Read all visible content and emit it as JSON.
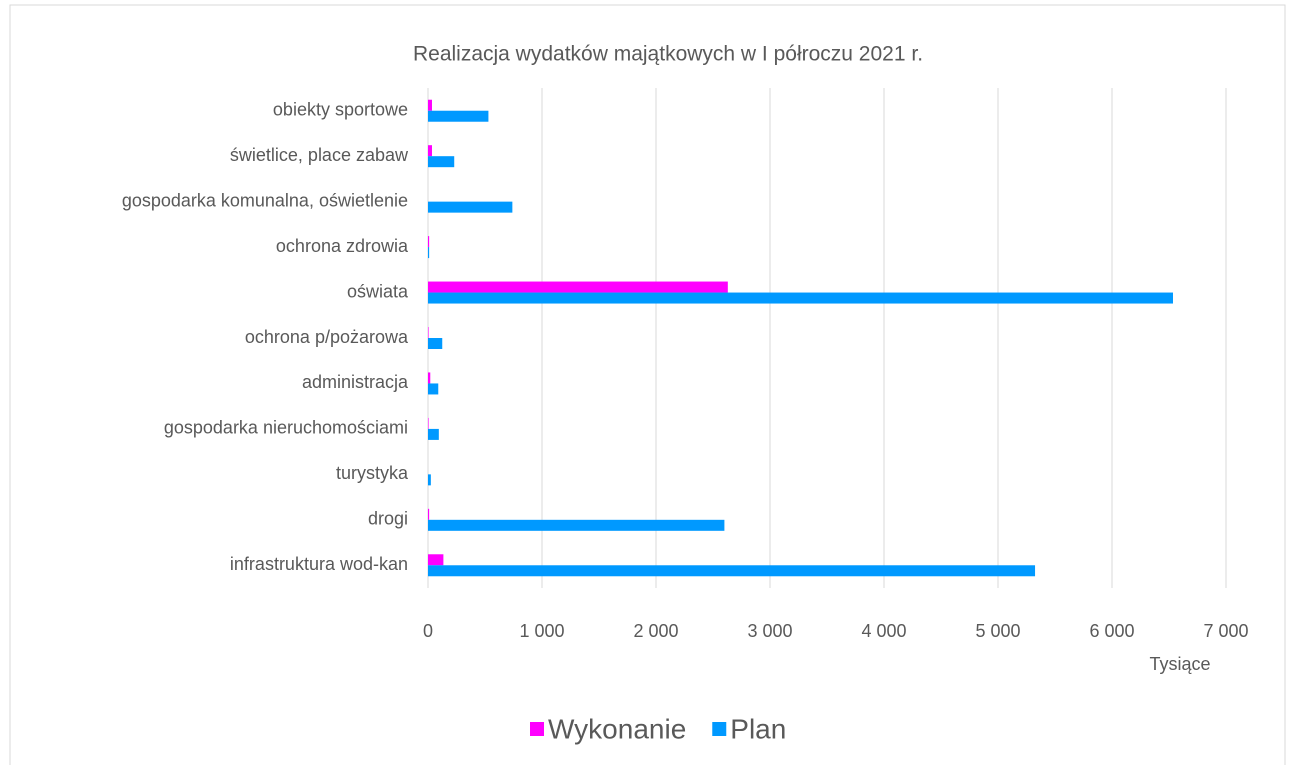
{
  "chart_data": {
    "type": "barh",
    "title": "Realizacja wydatków majątkowych w I półroczu 2021 r.",
    "x_label": "Tysiące",
    "categories": [
      "obiekty sportowe",
      "świetlice, place zabaw",
      "gospodarka komunalna, oświetlenie",
      "ochrona zdrowia",
      "oświata",
      "ochrona p/pożarowa",
      "administracja",
      "gospodarka nieruchomościami",
      "turystyka",
      "drogi",
      "infrastruktura wod-kan"
    ],
    "series": [
      {
        "name": "Wykonanie",
        "color": "#ff00ff",
        "values": [
          35,
          35,
          0,
          10,
          2630,
          5,
          20,
          5,
          0,
          10,
          135
        ]
      },
      {
        "name": "Plan",
        "color": "#0099ff",
        "values": [
          530,
          230,
          740,
          10,
          6535,
          125,
          90,
          95,
          25,
          2600,
          5325
        ]
      }
    ],
    "xlim": [
      0,
      7000
    ],
    "xticks": [
      0,
      {
        "value": 1000,
        "label": "1 000"
      },
      {
        "value": 2000,
        "label": "2 000"
      },
      {
        "value": 3000,
        "label": "3 000"
      },
      {
        "value": 4000,
        "label": "4 000"
      },
      {
        "value": 5000,
        "label": "5 000"
      },
      {
        "value": 6000,
        "label": "6 000"
      },
      {
        "value": 7000,
        "label": "7 000"
      }
    ],
    "grid": true,
    "legend": "bottom"
  }
}
